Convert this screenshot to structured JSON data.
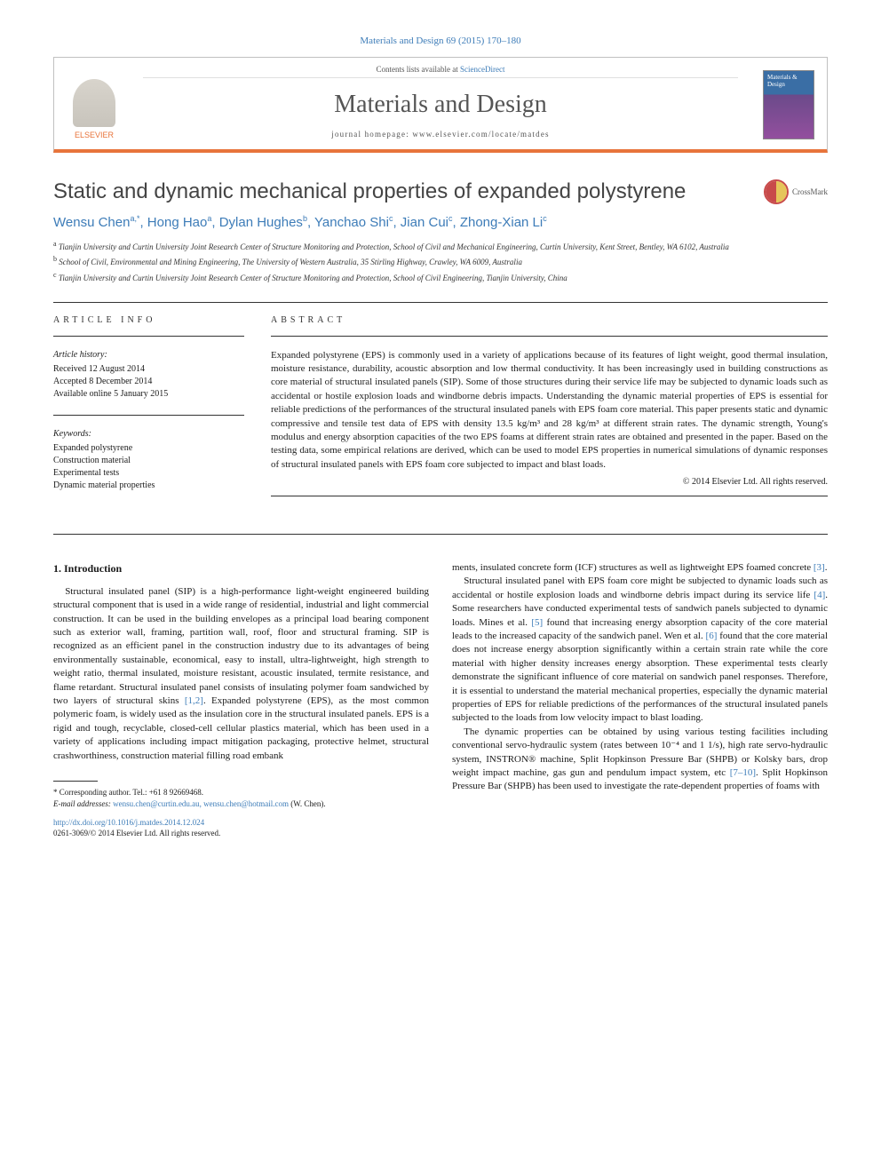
{
  "journal_ref": "Materials and Design 69 (2015) 170–180",
  "header": {
    "contents_line_prefix": "Contents lists available at ",
    "contents_link": "ScienceDirect",
    "journal_name": "Materials and Design",
    "homepage_prefix": "journal homepage: ",
    "homepage_url": "www.elsevier.com/locate/matdes",
    "publisher_logo_text": "ELSEVIER",
    "cover_text": "Materials & Design"
  },
  "article": {
    "title": "Static and dynamic mechanical properties of expanded polystyrene",
    "crossmark": "CrossMark",
    "authors_html": "Wensu Chen<sup>a,*</sup>, Hong Hao<sup>a</sup>, Dylan Hughes<sup>b</sup>, Yanchao Shi<sup>c</sup>, Jian Cui<sup>c</sup>, Zhong-Xian Li<sup>c</sup>",
    "affiliations": [
      "<sup>a</sup> Tianjin University and Curtin University Joint Research Center of Structure Monitoring and Protection, School of Civil and Mechanical Engineering, Curtin University, Kent Street, Bentley, WA 6102, Australia",
      "<sup>b</sup> School of Civil, Environmental and Mining Engineering, The University of Western Australia, 35 Stirling Highway, Crawley, WA 6009, Australia",
      "<sup>c</sup> Tianjin University and Curtin University Joint Research Center of Structure Monitoring and Protection, School of Civil Engineering, Tianjin University, China"
    ]
  },
  "info": {
    "label": "ARTICLE INFO",
    "history_heading": "Article history:",
    "history": [
      "Received 12 August 2014",
      "Accepted 8 December 2014",
      "Available online 5 January 2015"
    ],
    "keywords_heading": "Keywords:",
    "keywords": [
      "Expanded polystyrene",
      "Construction material",
      "Experimental tests",
      "Dynamic material properties"
    ]
  },
  "abstract": {
    "label": "ABSTRACT",
    "text": "Expanded polystyrene (EPS) is commonly used in a variety of applications because of its features of light weight, good thermal insulation, moisture resistance, durability, acoustic absorption and low thermal conductivity. It has been increasingly used in building constructions as core material of structural insulated panels (SIP). Some of those structures during their service life may be subjected to dynamic loads such as accidental or hostile explosion loads and windborne debris impacts. Understanding the dynamic material properties of EPS is essential for reliable predictions of the performances of the structural insulated panels with EPS foam core material. This paper presents static and dynamic compressive and tensile test data of EPS with density 13.5 kg/m³ and 28 kg/m³ at different strain rates. The dynamic strength, Young's modulus and energy absorption capacities of the two EPS foams at different strain rates are obtained and presented in the paper. Based on the testing data, some empirical relations are derived, which can be used to model EPS properties in numerical simulations of dynamic responses of structural insulated panels with EPS foam core subjected to impact and blast loads.",
    "copyright": "© 2014 Elsevier Ltd. All rights reserved."
  },
  "body": {
    "section_heading": "1. Introduction",
    "col1_p1": "Structural insulated panel (SIP) is a high-performance light-weight engineered building structural component that is used in a wide range of residential, industrial and light commercial construction. It can be used in the building envelopes as a principal load bearing component such as exterior wall, framing, partition wall, roof, floor and structural framing. SIP is recognized as an efficient panel in the construction industry due to its advantages of being environmentally sustainable, economical, easy to install, ultra-lightweight, high strength to weight ratio, thermal insulated, moisture resistant, acoustic insulated, termite resistance, and flame retardant. Structural insulated panel consists of insulating polymer foam sandwiched by two layers of structural skins [1,2]. Expanded polystyrene (EPS), as the most common polymeric foam, is widely used as the insulation core in the structural insulated panels. EPS is a rigid and tough, recyclable, closed-cell cellular plastics material, which has been used in a variety of applications including impact mitigation packaging, protective helmet, structural crashworthiness, construction material filling road embank",
    "col2_p1": "ments, insulated concrete form (ICF) structures as well as lightweight EPS foamed concrete [3].",
    "col2_p2": "Structural insulated panel with EPS foam core might be subjected to dynamic loads such as accidental or hostile explosion loads and windborne debris impact during its service life [4]. Some researchers have conducted experimental tests of sandwich panels subjected to dynamic loads. Mines et al. [5] found that increasing energy absorption capacity of the core material leads to the increased capacity of the sandwich panel. Wen et al. [6] found that the core material does not increase energy absorption significantly within a certain strain rate while the core material with higher density increases energy absorption. These experimental tests clearly demonstrate the significant influence of core material on sandwich panel responses. Therefore, it is essential to understand the material mechanical properties, especially the dynamic material properties of EPS for reliable predictions of the performances of the structural insulated panels subjected to the loads from low velocity impact to blast loading.",
    "col2_p3": "The dynamic properties can be obtained by using various testing facilities including conventional servo-hydraulic system (rates between 10⁻⁴ and 1 1/s), high rate servo-hydraulic system, INSTRON® machine, Split Hopkinson Pressure Bar (SHPB) or Kolsky bars, drop weight impact machine, gas gun and pendulum impact system, etc [7–10]. Split Hopkinson Pressure Bar (SHPB) has been used to investigate the rate-dependent properties of foams with"
  },
  "footnotes": {
    "corresponding": "* Corresponding author. Tel.: +61 8 92669468.",
    "email_label": "E-mail addresses:",
    "emails": "wensu.chen@curtin.edu.au, wensu.chen@hotmail.com",
    "email_person": "(W. Chen)."
  },
  "doi": {
    "url": "http://dx.doi.org/10.1016/j.matdes.2014.12.024",
    "issn_line": "0261-3069/© 2014 Elsevier Ltd. All rights reserved."
  },
  "colors": {
    "link": "#3d7cb8",
    "accent": "#e8743b"
  }
}
